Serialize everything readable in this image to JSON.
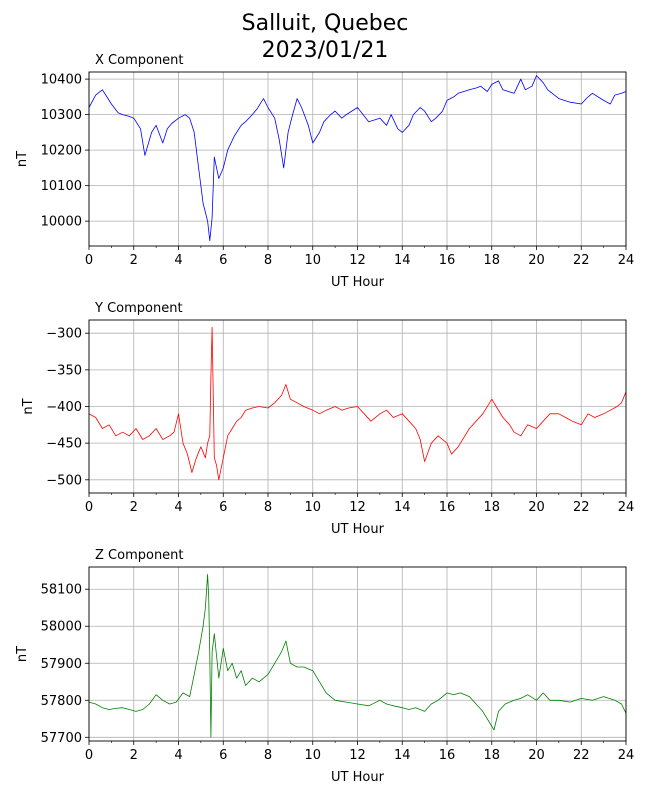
{
  "figure": {
    "title_line1": "Salluit, Quebec",
    "title_line2": "2023/01/21"
  },
  "chart_data": [
    {
      "type": "line",
      "title": "X Component",
      "xlabel": "UT Hour",
      "ylabel": "nT",
      "xlim": [
        0,
        24
      ],
      "ylim": [
        9930,
        10420
      ],
      "xticks": [
        "0",
        "2",
        "4",
        "6",
        "8",
        "10",
        "12",
        "14",
        "16",
        "18",
        "20",
        "22",
        "24"
      ],
      "yticks": [
        "10000",
        "10100",
        "10200",
        "10300",
        "10400"
      ],
      "grid": true,
      "color": "#0000ff",
      "series": [
        {
          "x": [
            0,
            0.3,
            0.6,
            0.8,
            1.0,
            1.3,
            1.5,
            1.8,
            2.0,
            2.3,
            2.5,
            2.8,
            3.0,
            3.3,
            3.5,
            3.7,
            4.0,
            4.3,
            4.5,
            4.7,
            4.9,
            5.1,
            5.3,
            5.4,
            5.5,
            5.6,
            5.8,
            6.0,
            6.2,
            6.5,
            6.8,
            7.0,
            7.3,
            7.5,
            7.8,
            8.0,
            8.3,
            8.5,
            8.7,
            8.9,
            9.1,
            9.3,
            9.5,
            9.8,
            10.0,
            10.3,
            10.5,
            10.8,
            11.0,
            11.3,
            11.5,
            12.0,
            12.5,
            13.0,
            13.3,
            13.5,
            13.8,
            14.0,
            14.3,
            14.5,
            14.8,
            15.0,
            15.3,
            15.5,
            15.8,
            16.0,
            16.3,
            16.5,
            17.0,
            17.3,
            17.5,
            17.8,
            18.0,
            18.3,
            18.5,
            19.0,
            19.3,
            19.5,
            19.8,
            20.0,
            20.3,
            20.5,
            21.0,
            21.5,
            22.0,
            22.3,
            22.5,
            23.0,
            23.3,
            23.5,
            23.8,
            24.0
          ],
          "values": [
            10320,
            10355,
            10370,
            10350,
            10330,
            10305,
            10300,
            10295,
            10290,
            10260,
            10185,
            10250,
            10270,
            10220,
            10260,
            10275,
            10290,
            10300,
            10290,
            10250,
            10150,
            10050,
            10000,
            9945,
            10010,
            10180,
            10120,
            10150,
            10200,
            10240,
            10270,
            10280,
            10300,
            10315,
            10345,
            10320,
            10290,
            10230,
            10150,
            10250,
            10300,
            10345,
            10320,
            10270,
            10220,
            10250,
            10280,
            10300,
            10310,
            10290,
            10300,
            10320,
            10280,
            10290,
            10270,
            10300,
            10260,
            10250,
            10270,
            10300,
            10320,
            10310,
            10280,
            10290,
            10310,
            10340,
            10350,
            10360,
            10370,
            10375,
            10380,
            10365,
            10385,
            10395,
            10370,
            10360,
            10400,
            10370,
            10380,
            10410,
            10390,
            10370,
            10345,
            10335,
            10330,
            10350,
            10360,
            10340,
            10330,
            10355,
            10360,
            10365
          ]
        }
      ]
    },
    {
      "type": "line",
      "title": "Y Component",
      "xlabel": "UT Hour",
      "ylabel": "nT",
      "xlim": [
        0,
        24
      ],
      "ylim": [
        -518,
        -282
      ],
      "xticks": [
        "0",
        "2",
        "4",
        "6",
        "8",
        "10",
        "12",
        "14",
        "16",
        "18",
        "20",
        "22",
        "24"
      ],
      "yticks": [
        "−300",
        "−350",
        "−400",
        "−450",
        "−500"
      ],
      "grid": true,
      "color": "#ff0000",
      "series": [
        {
          "x": [
            0,
            0.3,
            0.6,
            0.9,
            1.2,
            1.5,
            1.8,
            2.1,
            2.4,
            2.7,
            3.0,
            3.3,
            3.6,
            3.8,
            4.0,
            4.2,
            4.4,
            4.6,
            4.8,
            5.0,
            5.2,
            5.3,
            5.4,
            5.45,
            5.5,
            5.6,
            5.7,
            5.8,
            6.0,
            6.2,
            6.4,
            6.6,
            6.8,
            7.0,
            7.3,
            7.6,
            8.0,
            8.3,
            8.6,
            8.8,
            9.0,
            9.3,
            9.6,
            10.0,
            10.3,
            10.6,
            11.0,
            11.3,
            11.6,
            12.0,
            12.3,
            12.6,
            13.0,
            13.3,
            13.6,
            14.0,
            14.3,
            14.6,
            14.8,
            15.0,
            15.3,
            15.6,
            16.0,
            16.2,
            16.5,
            16.8,
            17.0,
            17.3,
            17.6,
            18.0,
            18.2,
            18.5,
            18.8,
            19.0,
            19.3,
            19.6,
            20.0,
            20.3,
            20.6,
            21.0,
            21.3,
            21.6,
            22.0,
            22.3,
            22.6,
            23.0,
            23.3,
            23.6,
            23.8,
            24.0
          ],
          "values": [
            -410,
            -415,
            -430,
            -425,
            -440,
            -435,
            -440,
            -430,
            -445,
            -440,
            -430,
            -445,
            -440,
            -435,
            -410,
            -450,
            -465,
            -490,
            -470,
            -455,
            -470,
            -450,
            -440,
            -360,
            -292,
            -470,
            -480,
            -500,
            -470,
            -440,
            -430,
            -420,
            -415,
            -405,
            -402,
            -400,
            -402,
            -395,
            -385,
            -370,
            -390,
            -395,
            -400,
            -405,
            -410,
            -405,
            -400,
            -405,
            -402,
            -400,
            -410,
            -420,
            -410,
            -405,
            -415,
            -410,
            -420,
            -430,
            -445,
            -475,
            -450,
            -440,
            -450,
            -465,
            -455,
            -440,
            -430,
            -420,
            -410,
            -390,
            -400,
            -415,
            -425,
            -435,
            -440,
            -425,
            -430,
            -420,
            -410,
            -410,
            -415,
            -420,
            -425,
            -410,
            -415,
            -410,
            -405,
            -400,
            -395,
            -380
          ]
        }
      ]
    },
    {
      "type": "line",
      "title": "Z Component",
      "xlabel": "UT Hour",
      "ylabel": "nT",
      "xlim": [
        0,
        24
      ],
      "ylim": [
        57690,
        58160
      ],
      "xticks": [
        "0",
        "2",
        "4",
        "6",
        "8",
        "10",
        "12",
        "14",
        "16",
        "18",
        "20",
        "22",
        "24"
      ],
      "yticks": [
        "57700",
        "57800",
        "57900",
        "58000",
        "58100"
      ],
      "grid": true,
      "color": "#008000",
      "series": [
        {
          "x": [
            0,
            0.3,
            0.6,
            0.9,
            1.2,
            1.5,
            1.8,
            2.1,
            2.4,
            2.7,
            3.0,
            3.3,
            3.6,
            3.9,
            4.2,
            4.5,
            4.7,
            4.9,
            5.1,
            5.2,
            5.3,
            5.35,
            5.4,
            5.45,
            5.5,
            5.6,
            5.8,
            6.0,
            6.2,
            6.4,
            6.6,
            6.8,
            7.0,
            7.3,
            7.6,
            8.0,
            8.3,
            8.6,
            8.8,
            9.0,
            9.3,
            9.6,
            10.0,
            10.3,
            10.6,
            11.0,
            11.5,
            12.0,
            12.5,
            13.0,
            13.3,
            13.6,
            14.0,
            14.3,
            14.6,
            15.0,
            15.3,
            15.6,
            16.0,
            16.3,
            16.6,
            17.0,
            17.3,
            17.6,
            17.9,
            18.1,
            18.3,
            18.6,
            19.0,
            19.3,
            19.6,
            20.0,
            20.3,
            20.6,
            21.0,
            21.5,
            22.0,
            22.5,
            23.0,
            23.5,
            23.8,
            24.0
          ],
          "values": [
            57795,
            57790,
            57780,
            57775,
            57778,
            57780,
            57775,
            57770,
            57775,
            57790,
            57815,
            57800,
            57790,
            57795,
            57820,
            57810,
            57870,
            57930,
            58000,
            58050,
            58140,
            58080,
            57920,
            57700,
            57930,
            57980,
            57860,
            57940,
            57880,
            57900,
            57860,
            57880,
            57840,
            57860,
            57850,
            57870,
            57900,
            57930,
            57960,
            57900,
            57890,
            57890,
            57880,
            57850,
            57820,
            57800,
            57795,
            57790,
            57785,
            57800,
            57790,
            57785,
            57780,
            57775,
            57780,
            57770,
            57790,
            57800,
            57820,
            57815,
            57820,
            57810,
            57790,
            57770,
            57740,
            57720,
            57770,
            57790,
            57800,
            57805,
            57815,
            57800,
            57820,
            57800,
            57800,
            57795,
            57805,
            57800,
            57810,
            57800,
            57790,
            57765
          ]
        }
      ]
    }
  ]
}
